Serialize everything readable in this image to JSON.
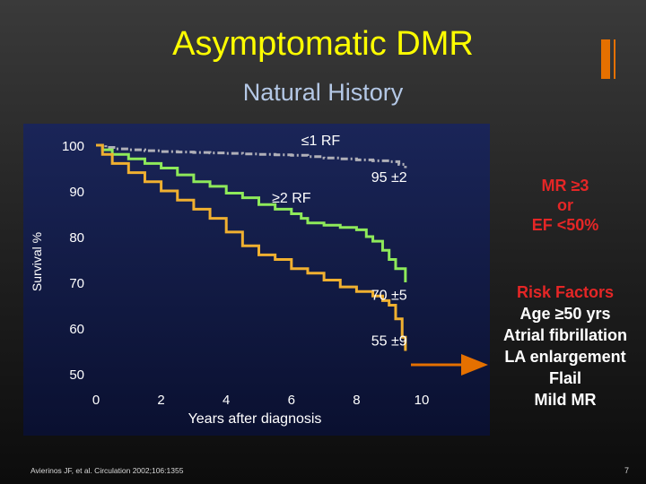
{
  "slide": {
    "title": "Asymptomatic DMR",
    "subtitle": "Natural History",
    "citation": "Avierinos JF, et al. Circulation 2002;106:1355",
    "page_number": "7"
  },
  "annotations": {
    "le1rf": "≤1 RF",
    "ge2rf": "≥2 RF",
    "v95": "95 ±2",
    "v70": "70 ±5",
    "v55": "55 ±9"
  },
  "mr_box": {
    "line1": "MR ≥3",
    "line2": "or",
    "line3": "EF <50%"
  },
  "risk_factors": {
    "title": "Risk Factors",
    "items": [
      "Age ≥50 yrs",
      "Atrial fibrillation",
      "LA enlargement",
      "Flail",
      "Mild MR"
    ]
  },
  "colors": {
    "title": "#ffff00",
    "subtitle": "#b4c8e6",
    "accent_orange": "#e57000",
    "highlight_red": "#e52626",
    "series_le1rf": "#b0b0b8",
    "series_ge2rf": "#8eea5a",
    "series_mr": "#f0b030",
    "plot_bg_top": "#16204e",
    "plot_bg_bottom": "#0a1030"
  },
  "chart_data": {
    "type": "line",
    "xlabel": "Years after diagnosis",
    "ylabel": "Survival %",
    "xlim": [
      0,
      10
    ],
    "ylim": [
      50,
      100
    ],
    "xticks": [
      "0",
      "2",
      "4",
      "6",
      "8",
      "10"
    ],
    "yticks": [
      "100",
      "90",
      "80",
      "70",
      "60",
      "50"
    ],
    "series": [
      {
        "name": "≤1 RF",
        "style": "dashed",
        "x": [
          0,
          0.3,
          0.6,
          1.0,
          1.5,
          2.0,
          2.5,
          3.0,
          3.5,
          4.0,
          4.5,
          5.0,
          5.5,
          6.0,
          6.5,
          7.0,
          7.5,
          8.0,
          8.5,
          9.0,
          9.3,
          9.5
        ],
        "y": [
          100,
          99.5,
          99.2,
          99,
          98.8,
          98.6,
          98.5,
          98.4,
          98.3,
          98.2,
          98.1,
          98.0,
          97.9,
          97.8,
          97.5,
          97.2,
          97.0,
          96.8,
          96.6,
          96.4,
          95.8,
          95
        ]
      },
      {
        "name": "≥2 RF",
        "style": "solid",
        "x": [
          0,
          0.2,
          0.5,
          1.0,
          1.5,
          2.0,
          2.5,
          3.0,
          3.5,
          4.0,
          4.5,
          5.0,
          5.5,
          6.0,
          6.3,
          6.5,
          7.0,
          7.5,
          8.0,
          8.3,
          8.5,
          8.8,
          9.0,
          9.2,
          9.5
        ],
        "y": [
          100,
          99,
          98,
          97,
          96,
          95,
          93.5,
          92,
          91,
          89.5,
          88.5,
          87,
          86,
          85,
          84,
          83,
          82.5,
          82,
          81.5,
          80,
          79,
          77,
          75,
          73,
          70
        ]
      },
      {
        "name": "MR ≥3 or EF <50%",
        "style": "solid",
        "x": [
          0,
          0.2,
          0.5,
          1.0,
          1.5,
          2.0,
          2.5,
          3.0,
          3.5,
          4.0,
          4.5,
          5.0,
          5.5,
          6.0,
          6.5,
          7.0,
          7.5,
          8.0,
          8.5,
          8.8,
          9.0,
          9.2,
          9.4,
          9.5
        ],
        "y": [
          100,
          98,
          96,
          94,
          92,
          90,
          88,
          86,
          84,
          81,
          78,
          76,
          75,
          73,
          72,
          70.5,
          69,
          68,
          67,
          66,
          65,
          62,
          58,
          55
        ]
      }
    ],
    "labels": [
      {
        "text": "≤1 RF",
        "x": 6.9,
        "y": 100
      },
      {
        "text": "≥2 RF",
        "x": 6.0,
        "y": 87.5
      },
      {
        "text": "95 ±2",
        "x": 9.0,
        "y": 92
      },
      {
        "text": "70 ±5",
        "x": 9.0,
        "y": 66.2
      },
      {
        "text": "55 ±9",
        "x": 9.0,
        "y": 56.2
      }
    ],
    "grid": false,
    "legend": "none"
  }
}
